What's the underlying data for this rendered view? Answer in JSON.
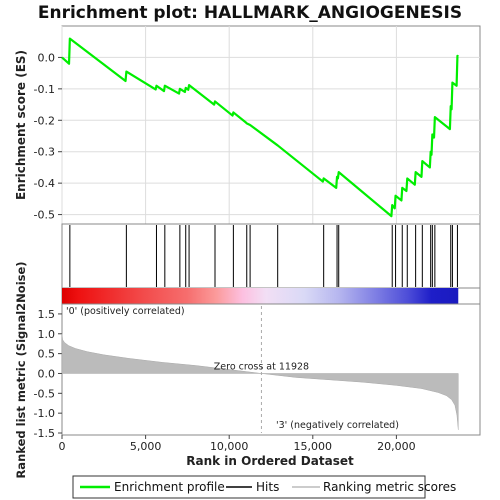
{
  "chart_data": {
    "type": "line",
    "title": "Enrichment plot: HALLMARK_ANGIOGENESIS",
    "x_axis": {
      "label": "Rank in Ordered Dataset",
      "range": [
        0,
        25000
      ],
      "ticks": [
        0,
        5000,
        10000,
        15000,
        20000
      ],
      "tick_labels": [
        "0",
        "5,000",
        "10,000",
        "15,000",
        "20,000"
      ]
    },
    "es_panel": {
      "ylabel": "Enrichment score (ES)",
      "ylim": [
        -0.53,
        0.1
      ],
      "ticks": [
        0.0,
        -0.1,
        -0.2,
        -0.3,
        -0.4,
        -0.5
      ],
      "tick_labels": [
        "0.0",
        "-0.1",
        "-0.2",
        "-0.3",
        "-0.4",
        "-0.5"
      ],
      "grid": true,
      "series": [
        {
          "name": "Enrichment profile",
          "color": "#00ee00",
          "points": [
            [
              0,
              0.0
            ],
            [
              420,
              -0.02
            ],
            [
              470,
              0.06
            ],
            [
              3800,
              -0.075
            ],
            [
              3850,
              -0.045
            ],
            [
              5600,
              -0.102
            ],
            [
              5650,
              -0.09
            ],
            [
              6100,
              -0.107
            ],
            [
              6150,
              -0.09
            ],
            [
              7000,
              -0.115
            ],
            [
              7050,
              -0.1
            ],
            [
              7350,
              -0.11
            ],
            [
              7400,
              -0.097
            ],
            [
              7550,
              -0.103
            ],
            [
              7600,
              -0.088
            ],
            [
              9100,
              -0.15
            ],
            [
              9150,
              -0.14
            ],
            [
              10200,
              -0.185
            ],
            [
              10250,
              -0.175
            ],
            [
              11000,
              -0.207
            ],
            [
              11050,
              -0.21
            ],
            [
              11250,
              -0.215
            ],
            [
              12900,
              -0.28
            ],
            [
              15600,
              -0.395
            ],
            [
              15650,
              -0.385
            ],
            [
              16400,
              -0.415
            ],
            [
              16450,
              -0.38
            ],
            [
              16500,
              -0.385
            ],
            [
              16550,
              -0.365
            ],
            [
              19700,
              -0.505
            ],
            [
              19750,
              -0.47
            ],
            [
              19900,
              -0.48
            ],
            [
              19950,
              -0.44
            ],
            [
              20300,
              -0.455
            ],
            [
              20350,
              -0.415
            ],
            [
              20600,
              -0.425
            ],
            [
              20650,
              -0.385
            ],
            [
              21100,
              -0.405
            ],
            [
              21150,
              -0.365
            ],
            [
              21500,
              -0.38
            ],
            [
              21550,
              -0.33
            ],
            [
              22000,
              -0.35
            ],
            [
              22050,
              -0.3
            ],
            [
              22100,
              -0.31
            ],
            [
              22150,
              -0.245
            ],
            [
              22250,
              -0.255
            ],
            [
              22300,
              -0.19
            ],
            [
              23200,
              -0.228
            ],
            [
              23250,
              -0.155
            ],
            [
              23300,
              -0.165
            ],
            [
              23350,
              -0.08
            ],
            [
              23600,
              -0.09
            ],
            [
              23650,
              0.005
            ],
            [
              23700,
              0.003
            ]
          ]
        }
      ]
    },
    "hits": {
      "name": "Hits",
      "color": "#000000",
      "positions": [
        470,
        3850,
        5650,
        6150,
        7050,
        7400,
        7600,
        9150,
        10250,
        11050,
        11250,
        12900,
        15650,
        16450,
        16550,
        19750,
        19950,
        20350,
        20650,
        21150,
        21550,
        22050,
        22150,
        22300,
        23250,
        23350,
        23650
      ]
    },
    "gradient_bar": {
      "n_genes": 23700,
      "stops": [
        {
          "rank": 0,
          "color": "#dd0000"
        },
        {
          "rank": 1000,
          "color": "#ee1111"
        },
        {
          "rank": 4800,
          "color": "#f24a4a"
        },
        {
          "rank": 7500,
          "color": "#f66e6e"
        },
        {
          "rank": 9200,
          "color": "#fb9a9a"
        },
        {
          "rank": 10800,
          "color": "#fdc0e0"
        },
        {
          "rank": 12200,
          "color": "#f2dff5"
        },
        {
          "rank": 14500,
          "color": "#d9d9f6"
        },
        {
          "rank": 16500,
          "color": "#b7b7ef"
        },
        {
          "rank": 18700,
          "color": "#8080e4"
        },
        {
          "rank": 20700,
          "color": "#4d4dd8"
        },
        {
          "rank": 22100,
          "color": "#1e1ec8"
        },
        {
          "rank": 23700,
          "color": "#1a1abf"
        }
      ]
    },
    "metric_panel": {
      "ylabel": "Ranked list metric (Signal2Noise)",
      "ylim": [
        -1.55,
        1.75
      ],
      "ticks": [
        1.5,
        1.0,
        0.5,
        0.0,
        -0.5,
        -1.0,
        -1.5
      ],
      "tick_labels": [
        "1.5",
        "1.0",
        "0.5",
        "0.0",
        "-0.5",
        "-1.0",
        "-1.5"
      ],
      "series": [
        {
          "name": "Ranking metric scores",
          "color": "#bbbbbb",
          "points": [
            [
              0,
              1.0
            ],
            [
              40,
              0.85
            ],
            [
              150,
              0.78
            ],
            [
              400,
              0.7
            ],
            [
              800,
              0.63
            ],
            [
              1500,
              0.55
            ],
            [
              2500,
              0.47
            ],
            [
              4000,
              0.38
            ],
            [
              6000,
              0.28
            ],
            [
              8000,
              0.2
            ],
            [
              10000,
              0.1
            ],
            [
              11928,
              0.0
            ],
            [
              14000,
              -0.1
            ],
            [
              16000,
              -0.16
            ],
            [
              18000,
              -0.22
            ],
            [
              20000,
              -0.3
            ],
            [
              21500,
              -0.38
            ],
            [
              22500,
              -0.48
            ],
            [
              23000,
              -0.56
            ],
            [
              23300,
              -0.66
            ],
            [
              23500,
              -0.8
            ],
            [
              23620,
              -1.05
            ],
            [
              23700,
              -1.42
            ]
          ]
        }
      ],
      "zero_cross": {
        "rank": 11928,
        "label": "Zero cross at 11928"
      },
      "annotations": [
        {
          "text": "'0' (positively correlated)",
          "color": "#cc0000"
        },
        {
          "text": "'3' (negatively correlated)",
          "color": "#2222cc"
        }
      ]
    },
    "legend": {
      "entries": [
        {
          "label": "Enrichment profile",
          "color": "#00ee00"
        },
        {
          "label": "Hits",
          "color": "#000000"
        },
        {
          "label": "Ranking metric scores",
          "color": "#bbbbbb"
        }
      ]
    }
  }
}
